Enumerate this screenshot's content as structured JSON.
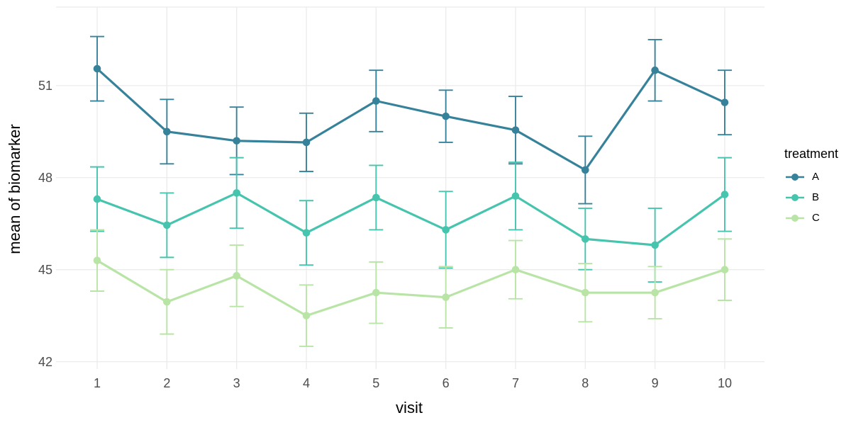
{
  "chart_data": {
    "type": "line",
    "title": "",
    "xlabel": "visit",
    "ylabel": "mean of biomarker",
    "x": [
      1,
      2,
      3,
      4,
      5,
      6,
      7,
      8,
      9,
      10
    ],
    "x_ticks": [
      1,
      2,
      3,
      4,
      5,
      6,
      7,
      8,
      9,
      10
    ],
    "y_ticks": [
      42,
      45,
      48,
      51
    ],
    "xlim": [
      0.41,
      10.57
    ],
    "ylim": [
      41.76,
      53.56
    ],
    "grid": true,
    "grid_color": "#ebebeb",
    "tick_label_color": "#4d4d4d",
    "background": "#ffffff",
    "error_bars": true,
    "legend": {
      "title": "treatment",
      "position": "right"
    },
    "series": [
      {
        "name": "A",
        "color": "#37829b",
        "values": [
          51.55,
          49.5,
          49.2,
          49.15,
          50.5,
          50.0,
          49.55,
          48.25,
          51.5,
          50.45
        ],
        "errors": [
          1.05,
          1.05,
          1.1,
          0.95,
          1.0,
          0.85,
          1.1,
          1.1,
          1.0,
          1.05
        ]
      },
      {
        "name": "B",
        "color": "#46c4ae",
        "values": [
          47.3,
          46.45,
          47.5,
          46.2,
          47.35,
          46.3,
          47.4,
          46.0,
          45.8,
          47.45
        ],
        "errors": [
          1.05,
          1.05,
          1.15,
          1.05,
          1.05,
          1.25,
          1.1,
          1.0,
          1.2,
          1.2
        ]
      },
      {
        "name": "C",
        "color": "#b8e5a5",
        "values": [
          45.3,
          43.95,
          44.8,
          43.5,
          44.25,
          44.1,
          45.0,
          44.25,
          44.25,
          45.0
        ],
        "errors": [
          1.0,
          1.05,
          1.0,
          1.0,
          1.0,
          1.0,
          0.95,
          0.95,
          0.85,
          1.0
        ]
      }
    ]
  }
}
